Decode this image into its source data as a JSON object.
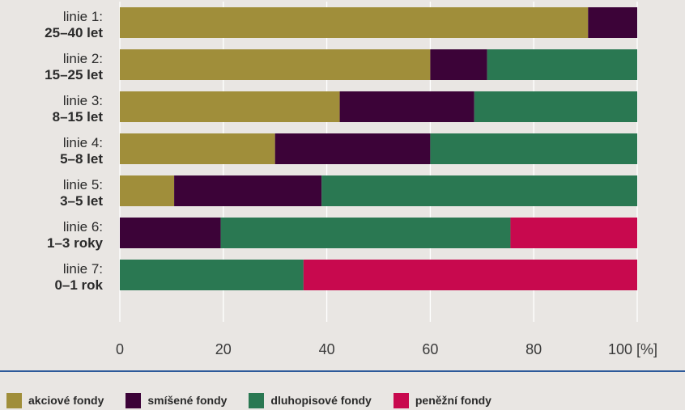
{
  "chart_data": {
    "type": "bar",
    "orientation": "horizontal",
    "stacked": true,
    "categories": [
      {
        "line1": "linie 1:",
        "line2": "25–40 let"
      },
      {
        "line1": "linie 2:",
        "line2": "15–25 let"
      },
      {
        "line1": "linie 3:",
        "line2": "8–15 let"
      },
      {
        "line1": "linie 4:",
        "line2": "5–8 let"
      },
      {
        "line1": "linie 5:",
        "line2": "3–5 let"
      },
      {
        "line1": "linie 6:",
        "line2": "1–3 roky"
      },
      {
        "line1": "linie 7:",
        "line2": "0–1 rok"
      }
    ],
    "series": [
      {
        "name": "akciové fondy",
        "color": "#a08e3a",
        "values": [
          90.5,
          60,
          42.5,
          30,
          10.5,
          0,
          0
        ]
      },
      {
        "name": "smíšené fondy",
        "color": "#3c0338",
        "values": [
          9.5,
          11,
          26,
          30,
          28.5,
          19.5,
          0
        ]
      },
      {
        "name": "dluhopisové fondy",
        "color": "#2a7852",
        "values": [
          0,
          29,
          31.5,
          40,
          61,
          56,
          35.5
        ]
      },
      {
        "name": "peněžní fondy",
        "color": "#c8094e",
        "values": [
          0,
          0,
          0,
          0,
          0,
          24.5,
          64.5
        ]
      }
    ],
    "x_ticks": [
      {
        "value": 0,
        "label": "0"
      },
      {
        "value": 20,
        "label": "20"
      },
      {
        "value": 40,
        "label": "40"
      },
      {
        "value": 60,
        "label": "60"
      },
      {
        "value": 80,
        "label": "80"
      },
      {
        "value": 100,
        "label": "100 [%]"
      }
    ],
    "xlim": [
      0,
      100
    ],
    "grid": true,
    "gridline_color": "#ffffff",
    "legend_placement": "bottom-left"
  }
}
